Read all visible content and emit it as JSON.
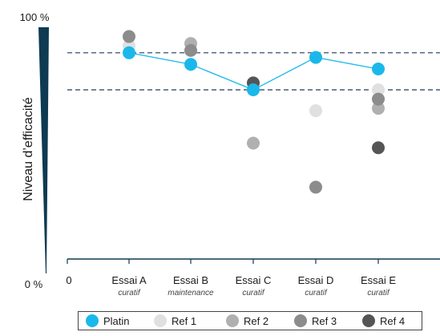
{
  "chart_data": {
    "type": "scatter",
    "y_top_label": "100 %",
    "y_bottom_label": "0 %",
    "ylabel": "Niveau d’efficacité",
    "x_origin_label": "0",
    "ylim": [
      0,
      100
    ],
    "grid": false,
    "reference_lines": [
      89,
      73
    ],
    "legend_position": "bottom",
    "categories": [
      "Essai A",
      "Essai B",
      "Essai C",
      "Essai D",
      "Essai E"
    ],
    "category_subtitles": [
      "curatif",
      "maintenance",
      "curatif",
      "curatif",
      "curatif"
    ],
    "series": [
      {
        "name": "Platin",
        "color": "#1ab8ea",
        "values": [
          89,
          84,
          73,
          87,
          82
        ],
        "connected": true
      },
      {
        "name": "Ref 1",
        "color": "#e0e0e0",
        "values": [
          92,
          null,
          null,
          64,
          73
        ]
      },
      {
        "name": "Ref 2",
        "color": "#b0b0b0",
        "values": [
          null,
          93,
          50,
          null,
          65
        ]
      },
      {
        "name": "Ref 3",
        "color": "#8c8c8c",
        "values": [
          96,
          90,
          null,
          31,
          69
        ]
      },
      {
        "name": "Ref 4",
        "color": "#555555",
        "values": [
          null,
          null,
          76,
          null,
          48
        ]
      }
    ],
    "axis_color": "#0e3a52",
    "reference_line_color": "#1f3b5a"
  }
}
